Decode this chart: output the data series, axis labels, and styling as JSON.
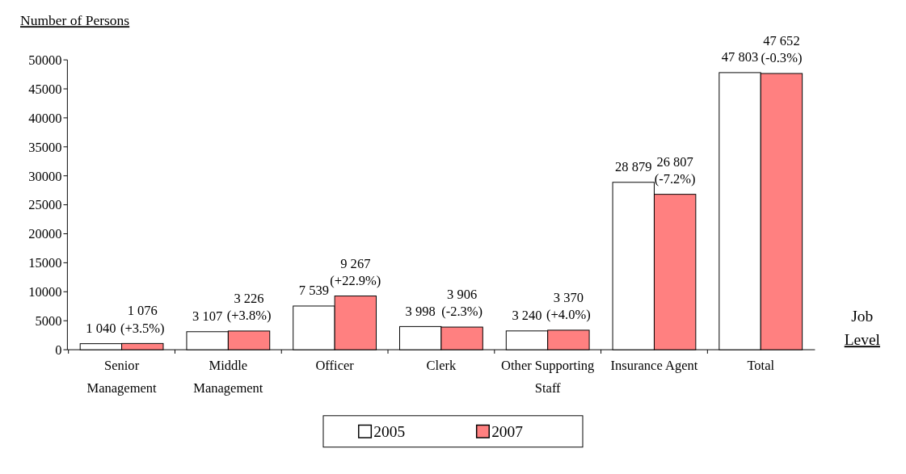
{
  "chart_data": {
    "type": "bar",
    "ylabel": "Number of Persons",
    "xlabel": "Job Level",
    "categories": [
      "Senior Management",
      "Middle Management",
      "Officer",
      "Clerk",
      "Other Supporting Staff",
      "Insurance Agent",
      "Total"
    ],
    "series": [
      {
        "name": "2005",
        "color": "#ffffff",
        "values": [
          1040,
          3107,
          7539,
          3998,
          3240,
          28879,
          47803
        ],
        "value_labels": [
          "1 040",
          "3 107",
          "7 539",
          "3 998",
          "3 240",
          "28 879",
          "47 803"
        ]
      },
      {
        "name": "2007",
        "color": "#ff8080",
        "values": [
          1076,
          3226,
          9267,
          3906,
          3370,
          26807,
          47652
        ],
        "value_labels": [
          "1 076 (+3.5%)",
          "3 226 (+3.8%)",
          "9 267 (+22.9%)",
          "3 906 (-2.3%)",
          "3 370 (+4.0%)",
          "26 807 (-7.2%)",
          "47 652 (-0.3%)"
        ]
      }
    ],
    "ylim": [
      0,
      50000
    ],
    "yticks": [
      0,
      5000,
      10000,
      15000,
      20000,
      25000,
      30000,
      35000,
      40000,
      45000,
      50000
    ],
    "legend": "bottom"
  }
}
